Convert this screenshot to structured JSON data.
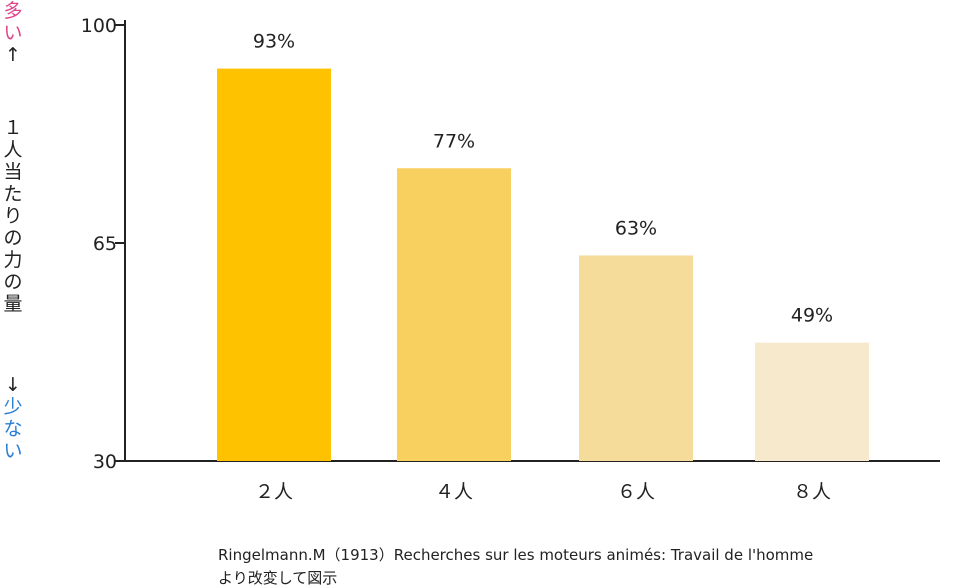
{
  "chart_data": {
    "type": "bar",
    "categories": [
      "２人",
      "４人",
      "６人",
      "８人"
    ],
    "values": [
      93,
      77,
      63,
      49
    ],
    "value_labels": [
      "93%",
      "77%",
      "63%",
      "49%"
    ],
    "bar_colors": [
      "#ffc200",
      "#f8d060",
      "#f6dc9a",
      "#f6e9cc"
    ],
    "y_ticks": [
      100,
      65,
      30
    ],
    "ylim": [
      30,
      100
    ],
    "ylabel_top": [
      "多",
      "い",
      "↑"
    ],
    "ylabel_mid": [
      "１",
      "人",
      "当",
      "た",
      "り",
      "の",
      "力",
      "の",
      "量"
    ],
    "ylabel_bottom": [
      "↓",
      "少",
      "な",
      "い"
    ],
    "grid": false,
    "legend": "none"
  },
  "source": {
    "line1": "Ringelmann.M（1913）Recherches sur les moteurs animés: Travail de l'homme",
    "line2": "より改変して図示"
  }
}
